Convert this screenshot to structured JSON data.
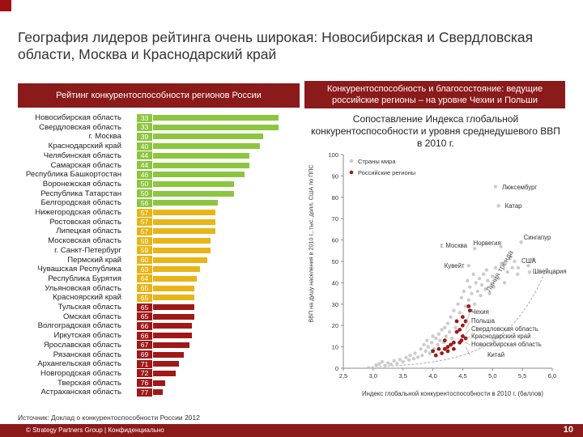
{
  "header": {
    "title": "География лидеров рейтинга очень широкая: Новосибирская и Свердловская области, Москва и Краснодарский край"
  },
  "left_panel": {
    "heading": "Рейтинг конкурентоспособности регионов России"
  },
  "right_panel": {
    "heading": "Конкурентоспособность и благосостояние: ведущие российские регионы – на уровне Чехии и Польши",
    "subtitle": "Сопоставление Индекса глобальной конкурентоспособности и уровня среднедушевого ВВП в 2010 г."
  },
  "colors": {
    "brand": "#8b1a1a",
    "green": "#8cc63f",
    "yellow": "#e8b418",
    "red": "#a01818",
    "country_dot": "#cccccc"
  },
  "chart_data": [
    {
      "type": "bar",
      "orientation": "horizontal",
      "title": "Рейтинг конкурентоспособности регионов России",
      "value_meaning": "место в рейтинге",
      "categories": [
        "Новосибирская область",
        "Свердловская область",
        "г. Москва",
        "Краснодарский край",
        "Челябинская область",
        "Самарская область",
        "Республика Башкортостан",
        "Воронежская область",
        "Республика Татарстан",
        "Белгородская область",
        "Нижегородская область",
        "Ростовская область",
        "Липецкая область",
        "Московская область",
        "г. Санкт-Петербург",
        "Пермский край",
        "Чувашская Республика",
        "Республика Бурятия",
        "Ульяновская область",
        "Красноярский край",
        "Тульская область",
        "Омская область",
        "Волгоградская область",
        "Иркутская область",
        "Ярославская область",
        "Рязанская область",
        "Архангельская область",
        "Новгородская область",
        "Тверская область",
        "Астраханская область"
      ],
      "values": [
        33,
        33,
        39,
        40,
        44,
        44,
        46,
        50,
        50,
        56,
        57,
        57,
        57,
        59,
        59,
        60,
        63,
        64,
        65,
        65,
        65,
        65,
        66,
        66,
        67,
        69,
        71,
        72,
        76,
        77
      ],
      "groups": [
        "green",
        "green",
        "green",
        "green",
        "green",
        "green",
        "green",
        "green",
        "green",
        "green",
        "yellow",
        "yellow",
        "yellow",
        "yellow",
        "yellow",
        "yellow",
        "yellow",
        "yellow",
        "yellow",
        "yellow",
        "red",
        "red",
        "red",
        "red",
        "red",
        "red",
        "red",
        "red",
        "red",
        "red"
      ]
    },
    {
      "type": "scatter",
      "title": "Сопоставление Индекса глобальной конкурентоспособности и уровня среднедушевого ВВП в 2010 г.",
      "xlabel": "Индекс глобальной конкурентоспособности в 2010 г. (баллов)",
      "ylabel": "ВВП на душу населения в 2010 г., тыс. долл. США по ППС",
      "xlim": [
        2.5,
        6.0
      ],
      "ylim": [
        0,
        100
      ],
      "xticks": [
        "2,5",
        "3,0",
        "3,5",
        "4,0",
        "4,5",
        "5,0",
        "5,5",
        "6,0"
      ],
      "yticks": [
        "0",
        "10",
        "20",
        "30",
        "40",
        "50",
        "60",
        "70",
        "80",
        "90",
        "100"
      ],
      "legend": [
        "Страны мира",
        "Российские регионы"
      ],
      "trend_label": "Линия тренда",
      "countries": [
        {
          "x": 3.05,
          "y": 1.5
        },
        {
          "x": 3.1,
          "y": 2
        },
        {
          "x": 3.15,
          "y": 3
        },
        {
          "x": 3.2,
          "y": 1.2
        },
        {
          "x": 3.25,
          "y": 2.5
        },
        {
          "x": 3.3,
          "y": 1.8
        },
        {
          "x": 3.35,
          "y": 3.5
        },
        {
          "x": 3.4,
          "y": 2.2
        },
        {
          "x": 3.45,
          "y": 4
        },
        {
          "x": 3.5,
          "y": 3
        },
        {
          "x": 3.55,
          "y": 5
        },
        {
          "x": 3.6,
          "y": 3.8
        },
        {
          "x": 3.62,
          "y": 6
        },
        {
          "x": 3.68,
          "y": 4.5
        },
        {
          "x": 3.7,
          "y": 7
        },
        {
          "x": 3.75,
          "y": 5.2
        },
        {
          "x": 3.8,
          "y": 9
        },
        {
          "x": 3.82,
          "y": 6
        },
        {
          "x": 3.85,
          "y": 11
        },
        {
          "x": 3.88,
          "y": 8
        },
        {
          "x": 3.9,
          "y": 13
        },
        {
          "x": 3.92,
          "y": 10
        },
        {
          "x": 3.95,
          "y": 7
        },
        {
          "x": 3.98,
          "y": 12
        },
        {
          "x": 4.0,
          "y": 15
        },
        {
          "x": 4.02,
          "y": 9
        },
        {
          "x": 4.05,
          "y": 14
        },
        {
          "x": 4.08,
          "y": 11
        },
        {
          "x": 4.1,
          "y": 16
        },
        {
          "x": 4.12,
          "y": 13
        },
        {
          "x": 4.15,
          "y": 18
        },
        {
          "x": 4.18,
          "y": 12
        },
        {
          "x": 4.2,
          "y": 19
        },
        {
          "x": 4.22,
          "y": 15
        },
        {
          "x": 4.25,
          "y": 21
        },
        {
          "x": 4.28,
          "y": 17
        },
        {
          "x": 4.3,
          "y": 24
        },
        {
          "x": 4.32,
          "y": 14
        },
        {
          "x": 4.35,
          "y": 27
        },
        {
          "x": 4.38,
          "y": 19
        },
        {
          "x": 4.4,
          "y": 22
        },
        {
          "x": 4.42,
          "y": 30
        },
        {
          "x": 4.45,
          "y": 26
        },
        {
          "x": 4.48,
          "y": 33
        },
        {
          "x": 4.5,
          "y": 20
        },
        {
          "x": 4.52,
          "y": 36
        },
        {
          "x": 4.55,
          "y": 29
        },
        {
          "x": 4.58,
          "y": 41
        },
        {
          "x": 4.6,
          "y": 32
        },
        {
          "x": 4.62,
          "y": 38
        },
        {
          "x": 4.65,
          "y": 35
        },
        {
          "x": 4.68,
          "y": 44
        },
        {
          "x": 4.7,
          "y": 30
        },
        {
          "x": 4.72,
          "y": 40
        },
        {
          "x": 4.75,
          "y": 36
        },
        {
          "x": 4.78,
          "y": 42
        },
        {
          "x": 4.8,
          "y": 34
        },
        {
          "x": 4.82,
          "y": 39
        },
        {
          "x": 4.85,
          "y": 44
        },
        {
          "x": 4.88,
          "y": 37
        },
        {
          "x": 4.9,
          "y": 46
        },
        {
          "x": 4.92,
          "y": 41
        },
        {
          "x": 4.95,
          "y": 35
        },
        {
          "x": 5.0,
          "y": 43
        },
        {
          "x": 5.02,
          "y": 38
        },
        {
          "x": 5.05,
          "y": 47
        },
        {
          "x": 5.1,
          "y": 42
        },
        {
          "x": 5.15,
          "y": 49
        },
        {
          "x": 5.2,
          "y": 40
        },
        {
          "x": 5.25,
          "y": 45
        },
        {
          "x": 5.3,
          "y": 52
        },
        {
          "x": 5.33,
          "y": 47
        },
        {
          "x": 5.37,
          "y": 50
        },
        {
          "x": 5.42,
          "y": 44
        },
        {
          "x": 5.6,
          "y": 48
        },
        {
          "x": 5.68,
          "y": 51
        }
      ],
      "labeled_points": [
        {
          "label": "Люксембург",
          "x": 5.05,
          "y": 85
        },
        {
          "label": "Катар",
          "x": 5.1,
          "y": 76
        },
        {
          "label": "Сингапур",
          "x": 5.48,
          "y": 59
        },
        {
          "label": "Норвегия",
          "x": 5.14,
          "y": 57
        },
        {
          "label": "г. Москва",
          "x": 4.7,
          "y": 56
        },
        {
          "label": "Швейцария",
          "x": 5.62,
          "y": 45
        },
        {
          "label": "Кувейт",
          "x": 4.6,
          "y": 48
        },
        {
          "label": "США",
          "x": 5.43,
          "y": 47
        }
      ],
      "regions": [
        {
          "x": 4.6,
          "y": 29
        },
        {
          "x": 4.62,
          "y": 27
        },
        {
          "x": 4.55,
          "y": 22
        },
        {
          "x": 4.5,
          "y": 20
        },
        {
          "x": 4.45,
          "y": 18
        },
        {
          "x": 4.4,
          "y": 17
        },
        {
          "x": 4.5,
          "y": 15
        },
        {
          "x": 4.48,
          "y": 13
        },
        {
          "x": 4.35,
          "y": 12
        },
        {
          "x": 4.3,
          "y": 11
        },
        {
          "x": 4.25,
          "y": 10
        },
        {
          "x": 4.2,
          "y": 9
        },
        {
          "x": 4.1,
          "y": 9
        },
        {
          "x": 4.0,
          "y": 8
        },
        {
          "x": 4.05,
          "y": 6
        },
        {
          "x": 4.15,
          "y": 7
        },
        {
          "x": 4.25,
          "y": 8
        },
        {
          "x": 4.35,
          "y": 9
        },
        {
          "x": 4.45,
          "y": 12
        },
        {
          "x": 4.55,
          "y": 14
        },
        {
          "x": 4.4,
          "y": 22
        },
        {
          "x": 4.5,
          "y": 24
        },
        {
          "x": 4.2,
          "y": 13
        }
      ],
      "region_annotations": [
        "Чехия",
        "Польша",
        "Свердловская область",
        "Краснодарский край",
        "Новосибирская область",
        "Китай"
      ]
    }
  ],
  "footer": {
    "source": "Источник: Доклад о конкурентоспособности России 2012",
    "copyright": "© Strategy Partners Group | Конфиденциально",
    "page_number": "10"
  }
}
